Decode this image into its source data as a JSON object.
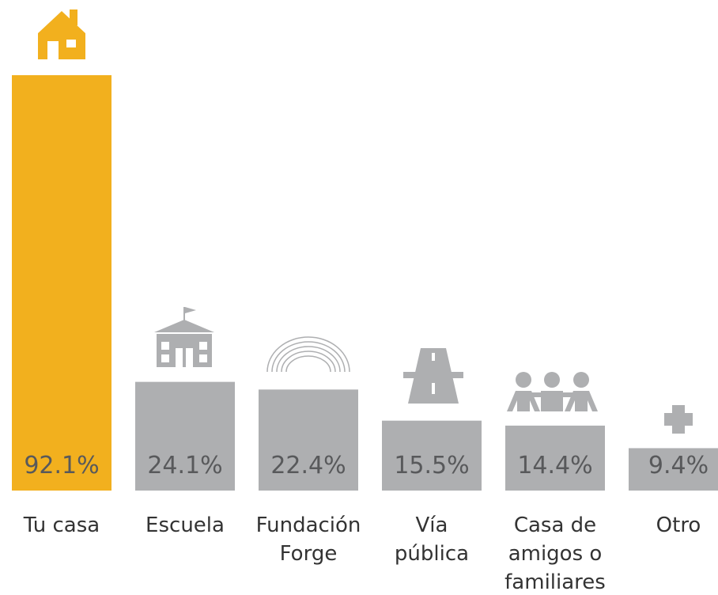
{
  "chart_data": {
    "type": "bar",
    "categories": [
      "Tu casa",
      "Escuela",
      "Fundación\nForge",
      "Vía\npública",
      "Casa de\namigos o\nfamiliares",
      "Otro"
    ],
    "values": [
      92.1,
      24.1,
      22.4,
      15.5,
      14.4,
      9.4
    ],
    "value_labels": [
      "92.1%",
      "24.1%",
      "22.4%",
      "15.5%",
      "14.4%",
      "9.4%"
    ],
    "colors": [
      "#f2b01e",
      "#aeafb1",
      "#aeafb1",
      "#aeafb1",
      "#aeafb1",
      "#aeafb1"
    ],
    "ylim": [
      0,
      100
    ]
  }
}
